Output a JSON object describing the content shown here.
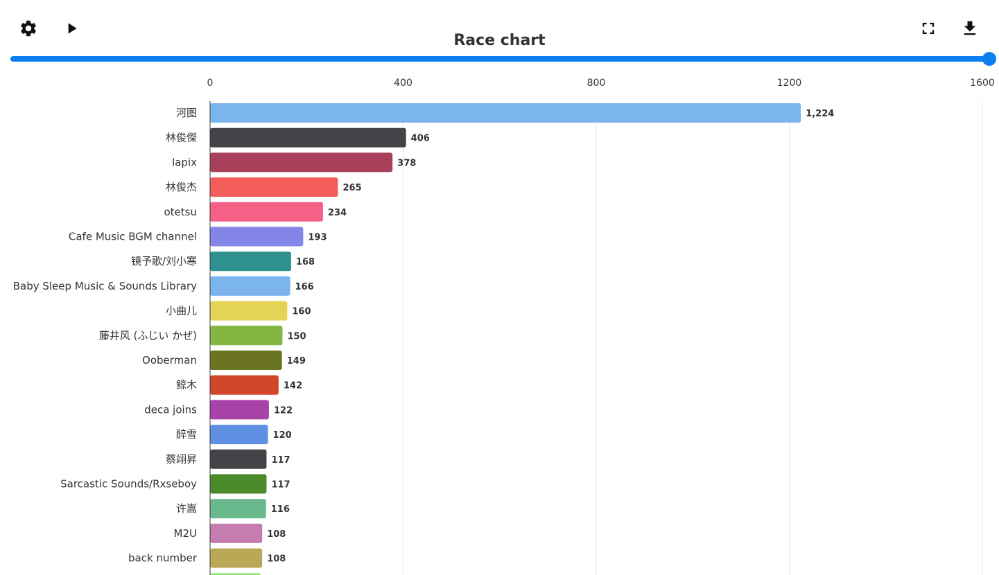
{
  "toolbar": {
    "settings_icon": "gear-icon",
    "play_icon": "play-icon",
    "fullscreen_icon": "fullscreen-icon",
    "download_icon": "download-icon"
  },
  "slider": {
    "value_fraction": 1.0
  },
  "colors": {
    "accent": "#0d7ff0",
    "axis_text": "#333333",
    "gridline": "#e6e6e6",
    "axis_line": "#333333"
  },
  "chart_data": {
    "type": "bar",
    "orientation": "horizontal",
    "title": "Race chart",
    "xlim": [
      0,
      1600
    ],
    "x_ticks": [
      0,
      400,
      800,
      1200,
      1600
    ],
    "x_tick_labels": [
      "0",
      "400",
      "800",
      "1200",
      "1600"
    ],
    "grid": true,
    "categories": [
      "河图",
      "林俊傑",
      "lapix",
      "林俊杰",
      "otetsu",
      "Cafe Music BGM channel",
      "镜予歌/刘小寒",
      "Baby Sleep Music & Sounds Library",
      "小曲儿",
      "藤井风 (ふじい かぜ)",
      "Ooberman",
      "鲸木",
      "deca joins",
      "醉雪",
      "蔡翊昇",
      "Sarcastic Sounds/Rxseboy",
      "许嵩",
      "M2U",
      "back number"
    ],
    "values": [
      1224,
      406,
      378,
      265,
      234,
      193,
      168,
      166,
      160,
      150,
      149,
      142,
      122,
      120,
      117,
      117,
      116,
      108,
      108
    ],
    "value_labels": [
      "1,224",
      "406",
      "378",
      "265",
      "234",
      "193",
      "168",
      "166",
      "160",
      "150",
      "149",
      "142",
      "122",
      "120",
      "117",
      "117",
      "116",
      "108",
      "108"
    ],
    "bar_colors": [
      "#7cb4ec",
      "#434348",
      "#aa3f5c",
      "#f35e5a",
      "#f46086",
      "#8385e7",
      "#2e9190",
      "#7cb4ec",
      "#e4d354",
      "#82b741",
      "#6b7420",
      "#d0472b",
      "#a843a9",
      "#5e8fe3",
      "#434348",
      "#4a8a2a",
      "#69b98d",
      "#c47dae",
      "#baa857"
    ],
    "partial_bar_color": "#98e77c"
  }
}
